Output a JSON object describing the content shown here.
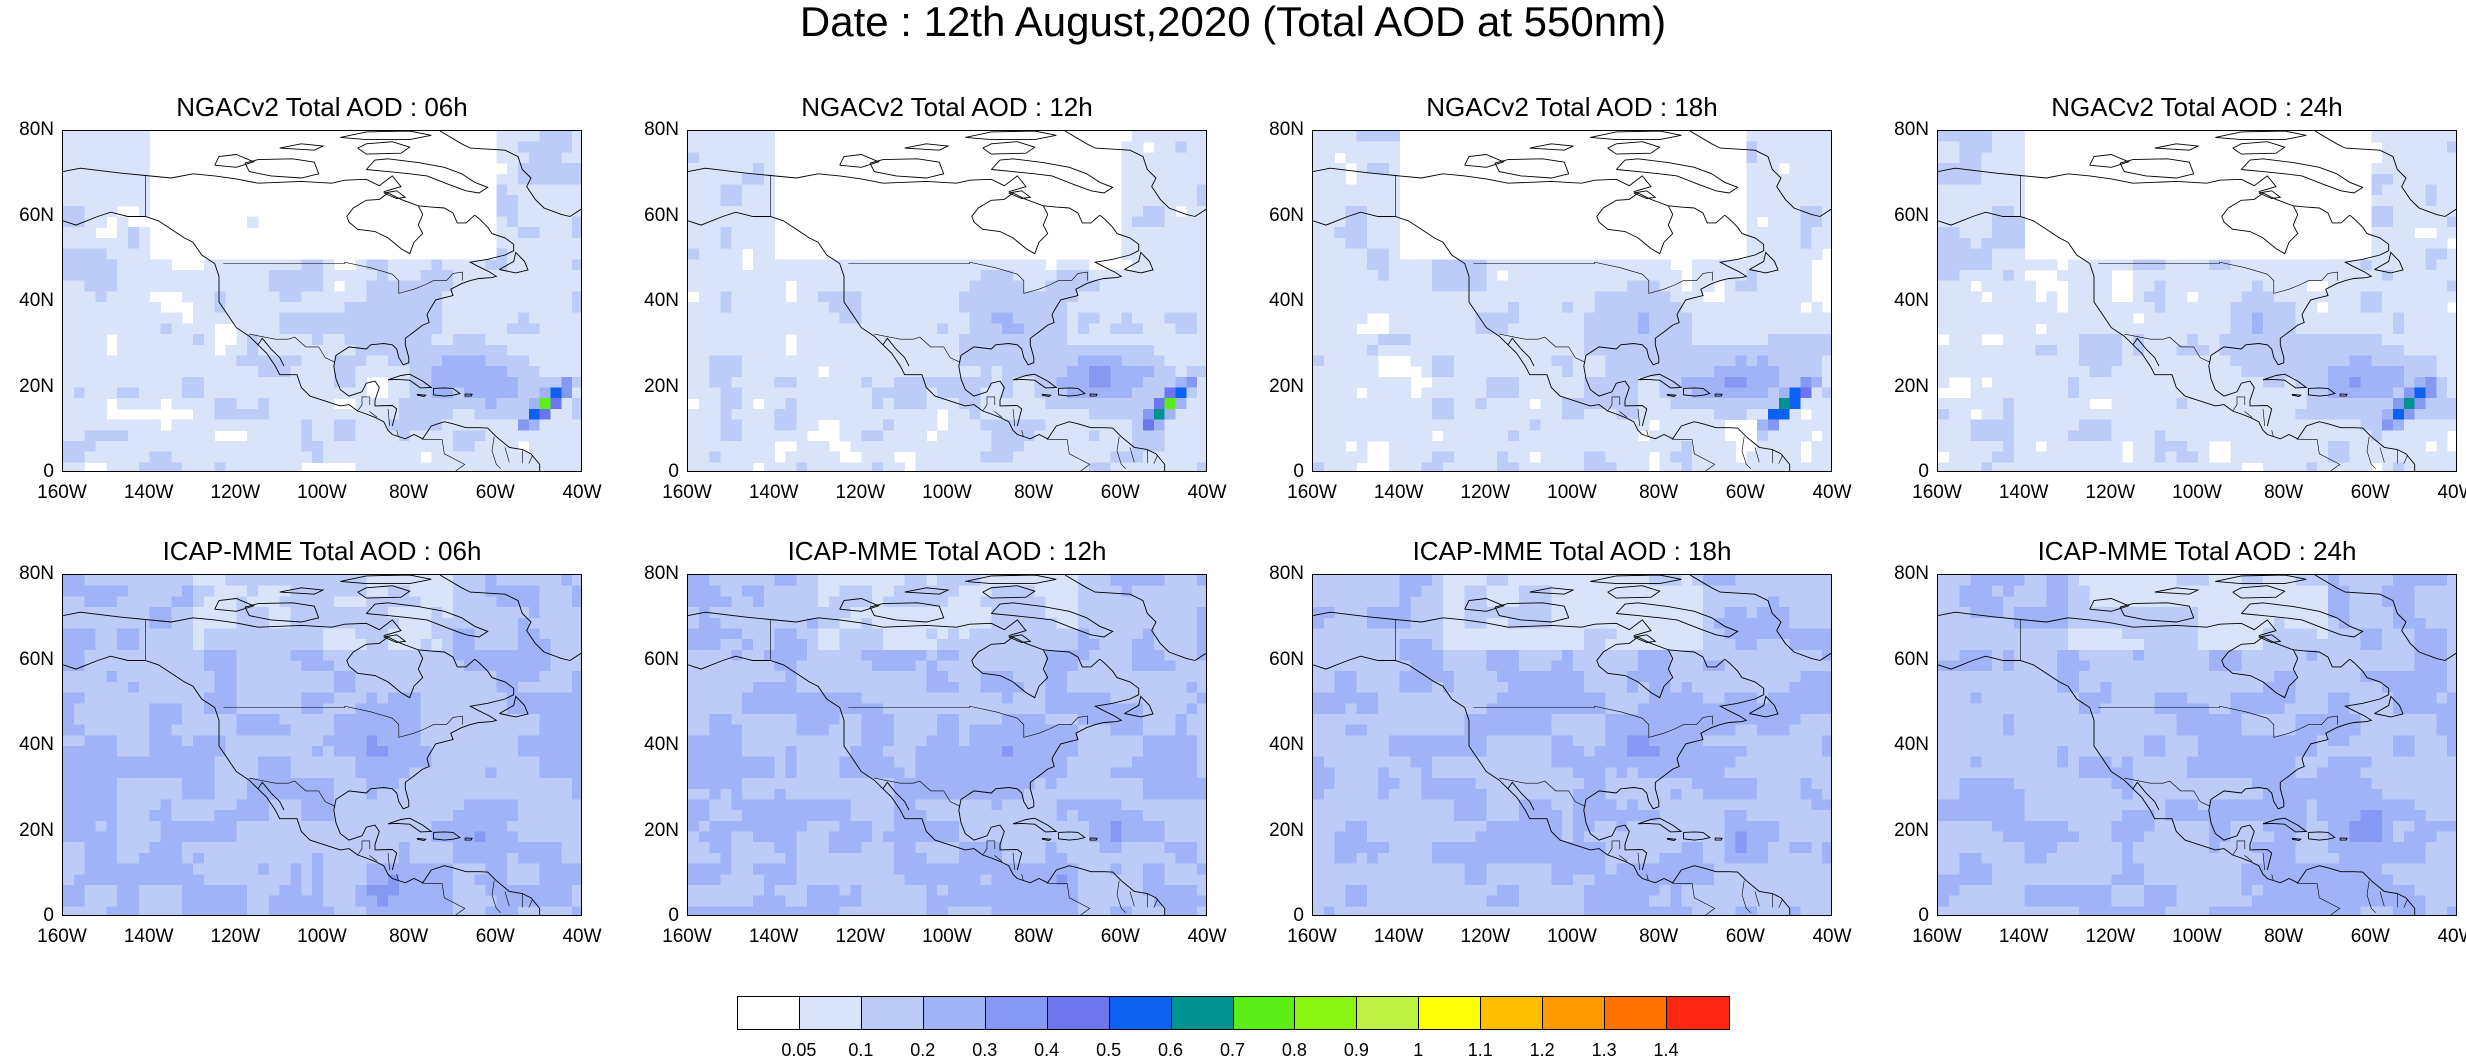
{
  "title": "Date : 12th August,2020 (Total AOD at 550nm)",
  "lat_labels": [
    "80N",
    "60N",
    "40N",
    "20N",
    "0"
  ],
  "lon_labels": [
    "160W",
    "140W",
    "120W",
    "100W",
    "80W",
    "60W",
    "40W"
  ],
  "panels": [
    {
      "title": "NGACv2 Total AOD : 06h",
      "model": "NGACv2",
      "forecast_hour": "06h",
      "plume_value": 0.75
    },
    {
      "title": "NGACv2 Total AOD : 12h",
      "model": "NGACv2",
      "forecast_hour": "12h",
      "plume_value": 0.75
    },
    {
      "title": "NGACv2 Total AOD : 18h",
      "model": "NGACv2",
      "forecast_hour": "18h",
      "plume_value": 0.8
    },
    {
      "title": "NGACv2 Total AOD : 24h",
      "model": "NGACv2",
      "forecast_hour": "24h",
      "plume_value": 0.6
    },
    {
      "title": "ICAP-MME Total AOD : 06h",
      "model": "ICAP-MME",
      "forecast_hour": "06h"
    },
    {
      "title": "ICAP-MME Total AOD : 12h",
      "model": "ICAP-MME",
      "forecast_hour": "12h"
    },
    {
      "title": "ICAP-MME Total AOD : 18h",
      "model": "ICAP-MME",
      "forecast_hour": "18h"
    },
    {
      "title": "ICAP-MME Total AOD : 24h",
      "model": "ICAP-MME",
      "forecast_hour": "24h"
    }
  ],
  "colorbar": {
    "labels": [
      "0.05",
      "0.1",
      "0.2",
      "0.3",
      "0.4",
      "0.5",
      "0.6",
      "0.7",
      "0.8",
      "0.9",
      "1",
      "1.1",
      "1.2",
      "1.3",
      "1.4"
    ],
    "colors": [
      "#ffffff",
      "#d9e3fa",
      "#bccbf8",
      "#9fb3f6",
      "#8599f2",
      "#6d76ee",
      "#0a61f2",
      "#009191",
      "#5cef17",
      "#8af511",
      "#bdf245",
      "#ffff07",
      "#ffbf00",
      "#ff9b00",
      "#ff7100",
      "#ff2712"
    ]
  }
}
